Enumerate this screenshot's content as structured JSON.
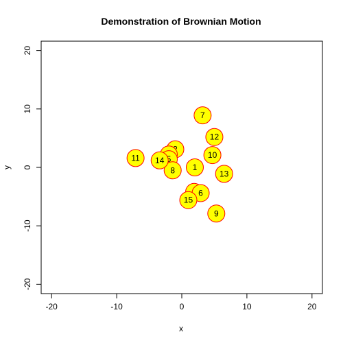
{
  "chart_data": {
    "type": "scatter",
    "title": "Demonstration of Brownian Motion",
    "xlabel": "x",
    "ylabel": "y",
    "xlim": [
      -21.6,
      21.6
    ],
    "ylim": [
      -21.6,
      21.6
    ],
    "x_ticks": [
      -20,
      -10,
      0,
      10,
      20
    ],
    "y_ticks": [
      -20,
      -10,
      0,
      10,
      20
    ],
    "grid": false,
    "legend": "none",
    "marker": {
      "fill": "#ffff00",
      "stroke": "#ff0000"
    },
    "points": [
      {
        "label": "1",
        "x": 2.0,
        "y": 0.0
      },
      {
        "label": "2",
        "x": -1.0,
        "y": 3.1
      },
      {
        "label": "3",
        "x": -2.0,
        "y": 2.2
      },
      {
        "label": "4",
        "x": 1.9,
        "y": -4.2
      },
      {
        "label": "5",
        "x": -2.0,
        "y": 1.4
      },
      {
        "label": "6",
        "x": 2.9,
        "y": -4.4
      },
      {
        "label": "7",
        "x": 3.2,
        "y": 8.9
      },
      {
        "label": "8",
        "x": -1.4,
        "y": -0.5
      },
      {
        "label": "9",
        "x": 5.3,
        "y": -7.9
      },
      {
        "label": "10",
        "x": 4.7,
        "y": 2.1
      },
      {
        "label": "11",
        "x": -7.1,
        "y": 1.6
      },
      {
        "label": "12",
        "x": 5.0,
        "y": 5.2
      },
      {
        "label": "13",
        "x": 6.5,
        "y": -1.1
      },
      {
        "label": "14",
        "x": -3.4,
        "y": 1.2
      },
      {
        "label": "15",
        "x": 1.0,
        "y": -5.6
      }
    ]
  }
}
